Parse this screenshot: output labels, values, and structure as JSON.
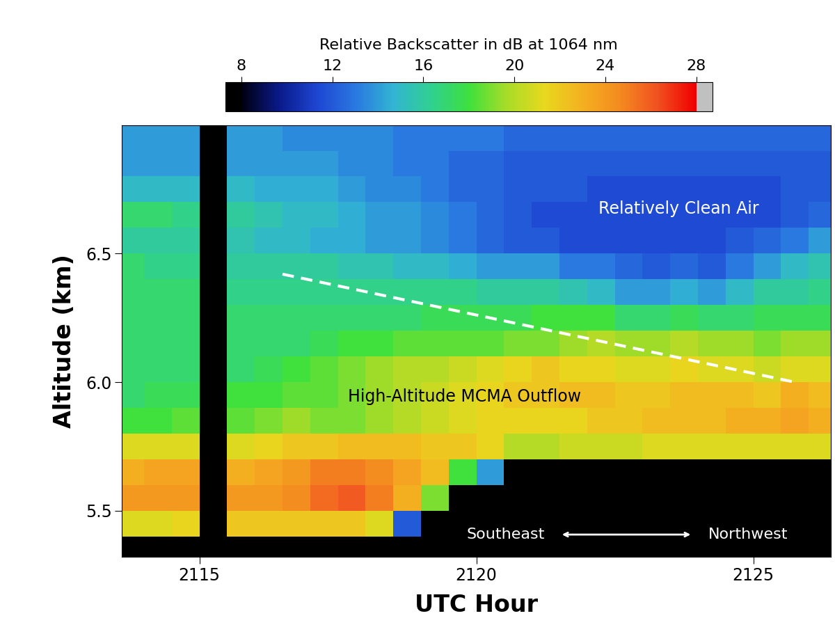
{
  "chart_data": {
    "type": "heatmap",
    "x_label": "UTC Hour",
    "y_label": "Altitude (km)",
    "xlim": [
      2113.6,
      2126.4
    ],
    "xticks": [
      2115,
      2120,
      2125
    ],
    "ylim": [
      5.32,
      7.0
    ],
    "yticks": [
      5.5,
      6.0,
      6.5
    ],
    "grid": false,
    "x": [
      2113.75,
      2114.25,
      2114.75,
      2115.25,
      2115.75,
      2116.25,
      2116.75,
      2117.25,
      2117.75,
      2118.25,
      2118.75,
      2119.25,
      2119.75,
      2120.25,
      2120.75,
      2121.25,
      2121.75,
      2122.25,
      2122.75,
      2123.25,
      2123.75,
      2124.25,
      2124.75,
      2125.25,
      2125.75,
      2126.25
    ],
    "y": [
      5.35,
      5.45,
      5.55,
      5.65,
      5.75,
      5.85,
      5.95,
      6.05,
      6.15,
      6.25,
      6.35,
      6.45,
      6.55,
      6.65,
      6.75,
      6.85,
      6.95
    ],
    "cells": [
      [
        null,
        21,
        24,
        23,
        21,
        18,
        17,
        17,
        17,
        17,
        17,
        17,
        16,
        17,
        15,
        14,
        14
      ],
      [
        null,
        21,
        24,
        23.5,
        21,
        18,
        17.5,
        17,
        17,
        17,
        17,
        16.5,
        16,
        17,
        15,
        14,
        14
      ],
      [
        null,
        21.5,
        24,
        23.5,
        21,
        18.5,
        17.5,
        17,
        17,
        17,
        17,
        16.5,
        16,
        16.5,
        15,
        14,
        14
      ],
      [
        null,
        null,
        null,
        null,
        null,
        null,
        null,
        null,
        null,
        null,
        null,
        null,
        null,
        null,
        null,
        null,
        null
      ],
      [
        null,
        22,
        24,
        23,
        21,
        18.5,
        18,
        17,
        17,
        17,
        16.5,
        16,
        15.5,
        16,
        15,
        14,
        14
      ],
      [
        null,
        22,
        24,
        23.5,
        21.5,
        19,
        18,
        17.5,
        17,
        17,
        16.5,
        16,
        15,
        15.5,
        14.5,
        14,
        14
      ],
      [
        null,
        22,
        24.5,
        24,
        22,
        19.5,
        18.5,
        18,
        17,
        17,
        16.5,
        16,
        15,
        15,
        14.5,
        14,
        13.5
      ],
      [
        null,
        22,
        25.5,
        25,
        22,
        19,
        18.5,
        18.5,
        17.5,
        17,
        16.5,
        16,
        14.5,
        15,
        14.5,
        14,
        13.5
      ],
      [
        null,
        22,
        26,
        25,
        22.5,
        19,
        19,
        19,
        18,
        17,
        16.5,
        15.5,
        14.5,
        14.5,
        14,
        13.5,
        13.5
      ],
      [
        null,
        21,
        25,
        24.5,
        22.5,
        19.5,
        19.5,
        19.5,
        18,
        17,
        16.5,
        15.5,
        14,
        14,
        13.5,
        13.5,
        13.5
      ],
      [
        null,
        12,
        23,
        23.5,
        22.5,
        20,
        20,
        20,
        18.5,
        17,
        16.5,
        15,
        14,
        14,
        13.5,
        13,
        13
      ],
      [
        null,
        null,
        19,
        22.5,
        22,
        20.5,
        20.5,
        20,
        18.5,
        17.5,
        16.5,
        15,
        13.5,
        13.5,
        13,
        13,
        13
      ],
      [
        null,
        null,
        null,
        18,
        22,
        21,
        21,
        20.5,
        18.5,
        17.5,
        16.5,
        14.5,
        13,
        13,
        12.5,
        12.5,
        13
      ],
      [
        null,
        null,
        null,
        14,
        21.5,
        21.5,
        21.5,
        21,
        18.5,
        17.5,
        16,
        14,
        12.5,
        12.5,
        12.5,
        12.5,
        13
      ],
      [
        null,
        null,
        null,
        null,
        20,
        21.5,
        22,
        21.5,
        19,
        17.5,
        16,
        14,
        12,
        12,
        12,
        12,
        12.5
      ],
      [
        null,
        null,
        null,
        null,
        20,
        21.5,
        22,
        22,
        19,
        18,
        16,
        14,
        12,
        11.5,
        12,
        12,
        12.5
      ],
      [
        null,
        null,
        null,
        null,
        20.5,
        21.5,
        22.5,
        21.5,
        19.5,
        18,
        15.5,
        13,
        11.5,
        11.5,
        12,
        12,
        12.5
      ],
      [
        null,
        null,
        null,
        null,
        20.5,
        22,
        22.5,
        21.5,
        20,
        18,
        15,
        13,
        11.5,
        11.5,
        11.5,
        12,
        12.5
      ],
      [
        null,
        null,
        null,
        null,
        20.5,
        22,
        22,
        21,
        19.5,
        17,
        14,
        12.5,
        11.5,
        11.5,
        11.5,
        12,
        12.5
      ],
      [
        null,
        null,
        null,
        null,
        21,
        22.5,
        22,
        21,
        19.5,
        17,
        14,
        12,
        11.5,
        11.5,
        11.5,
        12,
        12.5
      ],
      [
        null,
        null,
        null,
        null,
        21,
        22.5,
        22.5,
        21.5,
        20,
        17.5,
        14.5,
        12.5,
        11.5,
        11.5,
        11.5,
        12,
        12.5
      ],
      [
        null,
        null,
        null,
        null,
        21,
        22.5,
        22.5,
        21,
        19.5,
        17,
        14,
        12,
        11.5,
        11.5,
        11.5,
        12,
        12.5
      ],
      [
        null,
        null,
        null,
        null,
        21,
        23,
        22.5,
        21,
        19.5,
        17,
        15,
        13,
        12,
        11.5,
        11.5,
        12,
        12.5
      ],
      [
        null,
        null,
        null,
        null,
        21,
        23,
        22,
        20.5,
        19,
        17.5,
        16,
        14,
        12.5,
        11.5,
        11.5,
        12,
        12.5
      ],
      [
        null,
        null,
        null,
        null,
        21,
        23.5,
        23,
        21,
        19.5,
        17.5,
        16,
        15,
        13,
        12,
        12,
        12,
        12.5
      ],
      [
        null,
        null,
        null,
        null,
        21,
        23,
        22.5,
        21,
        19.5,
        17.5,
        16.5,
        15.5,
        14,
        12.5,
        12,
        12,
        12.5
      ]
    ],
    "colorbar": {
      "label": "Relative Backscatter in dB at 1064 nm",
      "range": [
        8,
        28
      ],
      "ticks": [
        8,
        12,
        16,
        20,
        24,
        28
      ]
    },
    "annotations": [
      "Relatively Clean Air",
      "High-Altitude MCMA Outflow",
      "Southeast",
      "Northwest"
    ],
    "boundary_line": {
      "x": [
        2116.5,
        2125.75
      ],
      "y": [
        6.42,
        6.0
      ],
      "line_style": "dashed",
      "color": "white"
    }
  }
}
